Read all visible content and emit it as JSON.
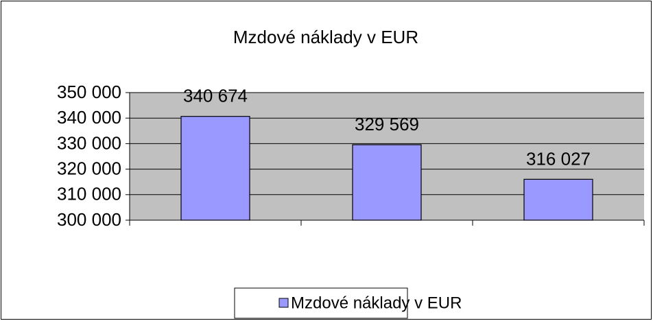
{
  "chart_data": {
    "type": "bar",
    "title": "Mzdové náklady v EUR",
    "categories": [
      null,
      null,
      null
    ],
    "series": [
      {
        "name": "Mzdové náklady v EUR",
        "color": "#9999ff",
        "values": [
          340674,
          329569,
          316027
        ],
        "value_labels": [
          "340 674",
          "329 569",
          "316 027"
        ]
      }
    ],
    "ylim": [
      300000,
      350000
    ],
    "yticks": [
      {
        "value": 300000,
        "label": "300 000"
      },
      {
        "value": 310000,
        "label": "310 000"
      },
      {
        "value": 320000,
        "label": "320 000"
      },
      {
        "value": 330000,
        "label": "330 000"
      },
      {
        "value": 340000,
        "label": "340 000"
      },
      {
        "value": 350000,
        "label": "350 000"
      }
    ],
    "grid": true,
    "plot_background": "#c0c0c0",
    "legend": "bottom"
  }
}
